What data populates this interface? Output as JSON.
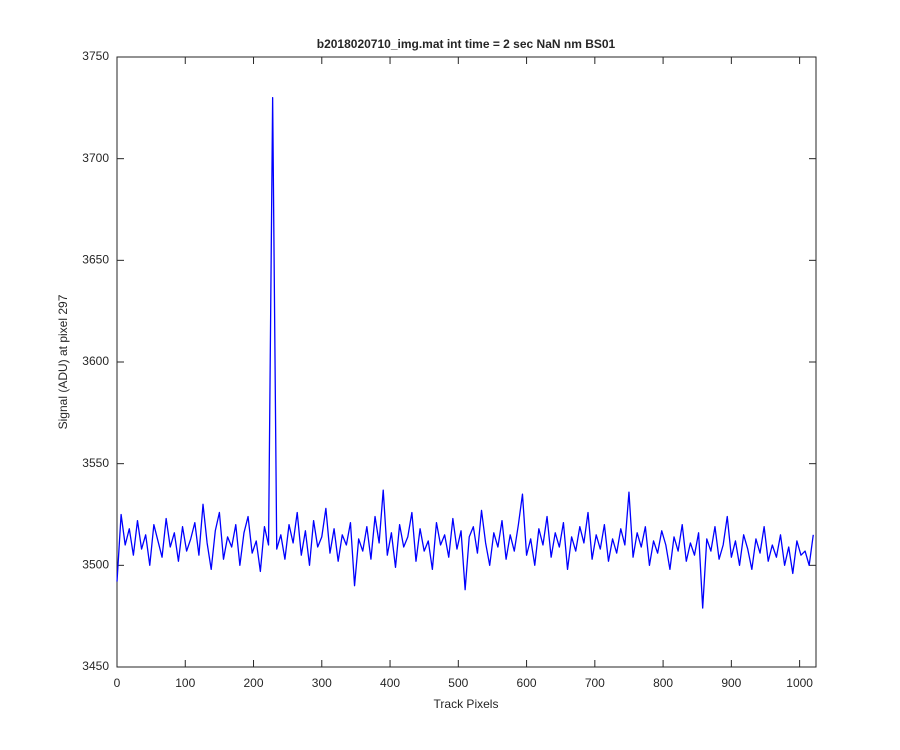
{
  "chart_data": {
    "type": "line",
    "title": "b2018020710_img.mat int time = 2 sec  NaN nm BS01",
    "x_label": "Track Pixels",
    "y_label": "Signal (ADU) at pixel 297",
    "xlim": [
      0,
      1024
    ],
    "ylim": [
      3450,
      3750
    ],
    "xticks": [
      0,
      100,
      200,
      300,
      400,
      500,
      600,
      700,
      800,
      900,
      1000
    ],
    "yticks": [
      3450,
      3500,
      3550,
      3600,
      3650,
      3700,
      3750
    ],
    "grid": false,
    "x": [
      0,
      6,
      12,
      18,
      24,
      30,
      36,
      42,
      48,
      54,
      60,
      66,
      72,
      78,
      84,
      90,
      96,
      102,
      108,
      114,
      120,
      126,
      132,
      138,
      144,
      150,
      156,
      162,
      168,
      174,
      180,
      186,
      192,
      198,
      204,
      210,
      216,
      222,
      228,
      234,
      240,
      246,
      252,
      258,
      264,
      270,
      276,
      282,
      288,
      294,
      300,
      306,
      312,
      318,
      324,
      330,
      336,
      342,
      348,
      354,
      360,
      366,
      372,
      378,
      384,
      390,
      396,
      402,
      408,
      414,
      420,
      426,
      432,
      438,
      444,
      450,
      456,
      462,
      468,
      474,
      480,
      486,
      492,
      498,
      504,
      510,
      516,
      522,
      528,
      534,
      540,
      546,
      552,
      558,
      564,
      570,
      576,
      582,
      588,
      594,
      600,
      606,
      612,
      618,
      624,
      630,
      636,
      642,
      648,
      654,
      660,
      666,
      672,
      678,
      684,
      690,
      696,
      702,
      708,
      714,
      720,
      726,
      732,
      738,
      744,
      750,
      756,
      762,
      768,
      774,
      780,
      786,
      792,
      798,
      804,
      810,
      816,
      822,
      828,
      834,
      840,
      846,
      852,
      858,
      864,
      870,
      876,
      882,
      888,
      894,
      900,
      906,
      912,
      918,
      924,
      930,
      936,
      942,
      948,
      954,
      960,
      966,
      972,
      978,
      984,
      990,
      996,
      1002,
      1008,
      1014,
      1020
    ],
    "series": [
      {
        "color": "#0000ff",
        "values": [
          3492,
          3525,
          3510,
          3518,
          3505,
          3522,
          3508,
          3515,
          3500,
          3520,
          3512,
          3504,
          3523,
          3509,
          3516,
          3502,
          3519,
          3507,
          3513,
          3521,
          3505,
          3530,
          3511,
          3498,
          3517,
          3526,
          3503,
          3514,
          3509,
          3520,
          3500,
          3516,
          3524,
          3506,
          3512,
          3497,
          3519,
          3510,
          3730,
          3508,
          3515,
          3503,
          3520,
          3511,
          3526,
          3505,
          3517,
          3500,
          3522,
          3509,
          3514,
          3528,
          3506,
          3518,
          3502,
          3515,
          3510,
          3521,
          3490,
          3513,
          3507,
          3519,
          3503,
          3524,
          3511,
          3537,
          3505,
          3516,
          3499,
          3520,
          3509,
          3514,
          3526,
          3502,
          3518,
          3507,
          3512,
          3498,
          3521,
          3510,
          3515,
          3504,
          3523,
          3508,
          3517,
          3488,
          3514,
          3519,
          3506,
          3527,
          3511,
          3500,
          3516,
          3509,
          3522,
          3503,
          3515,
          3507,
          3520,
          3535,
          3505,
          3513,
          3500,
          3518,
          3510,
          3524,
          3504,
          3516,
          3509,
          3521,
          3498,
          3514,
          3507,
          3519,
          3511,
          3526,
          3503,
          3515,
          3508,
          3520,
          3502,
          3513,
          3506,
          3518,
          3510,
          3536,
          3504,
          3516,
          3509,
          3519,
          3500,
          3512,
          3506,
          3517,
          3510,
          3498,
          3514,
          3507,
          3520,
          3502,
          3511,
          3505,
          3516,
          3479,
          3513,
          3507,
          3519,
          3503,
          3510,
          3524,
          3504,
          3512,
          3500,
          3515,
          3508,
          3498,
          3513,
          3506,
          3519,
          3502,
          3510,
          3504,
          3515,
          3500,
          3509,
          3496,
          3512,
          3505,
          3507,
          3500,
          3515
        ]
      }
    ]
  }
}
